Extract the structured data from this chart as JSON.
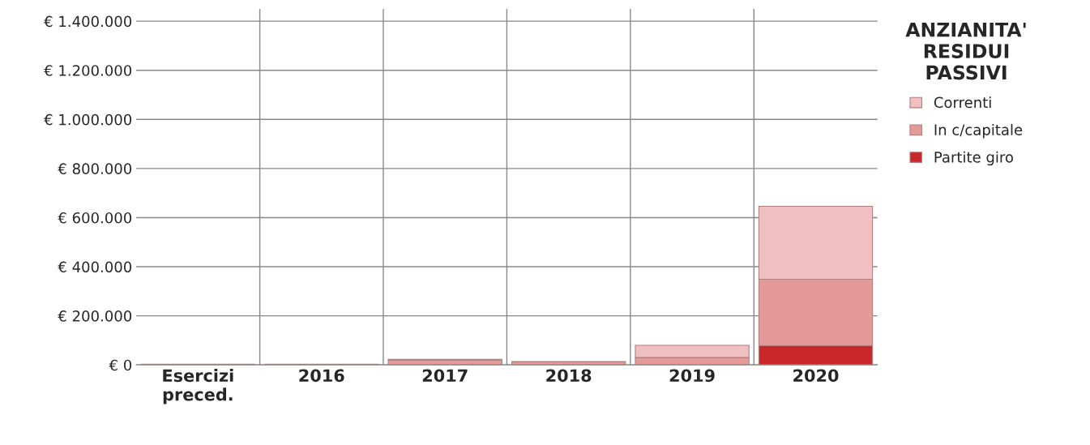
{
  "chart_data": {
    "type": "bar",
    "stacked": true,
    "categories": [
      "Esercizi\npreced.",
      "2016",
      "2017",
      "2018",
      "2019",
      "2020"
    ],
    "series": [
      {
        "name": "Partite giro",
        "color": "#c8282a",
        "values": [
          null,
          null,
          null,
          null,
          null,
          79000
        ]
      },
      {
        "name": "In c/capitale",
        "color": "#e39a98",
        "values": [
          3000,
          3000,
          20000,
          12000,
          30000,
          270000
        ]
      },
      {
        "name": "Correnti",
        "color": "#f0c0c0",
        "values": [
          null,
          null,
          3000,
          2000,
          50000,
          297000
        ]
      }
    ],
    "legend_title": "ANZIANITA'\nRESIDUI\nPASSIVI",
    "ylim": [
      0,
      1450000
    ],
    "yticks": [
      {
        "value": 0,
        "label": "€ 0"
      },
      {
        "value": 200000,
        "label": "€ 200.000"
      },
      {
        "value": 400000,
        "label": "€ 400.000"
      },
      {
        "value": 600000,
        "label": "€ 600.000"
      },
      {
        "value": 800000,
        "label": "€ 800.000"
      },
      {
        "value": 1000000,
        "label": "€ 1.000.000"
      },
      {
        "value": 1200000,
        "label": "€ 1.200.000"
      },
      {
        "value": 1400000,
        "label": "€ 1.400.000"
      }
    ],
    "grid": "y",
    "legend": "right"
  }
}
